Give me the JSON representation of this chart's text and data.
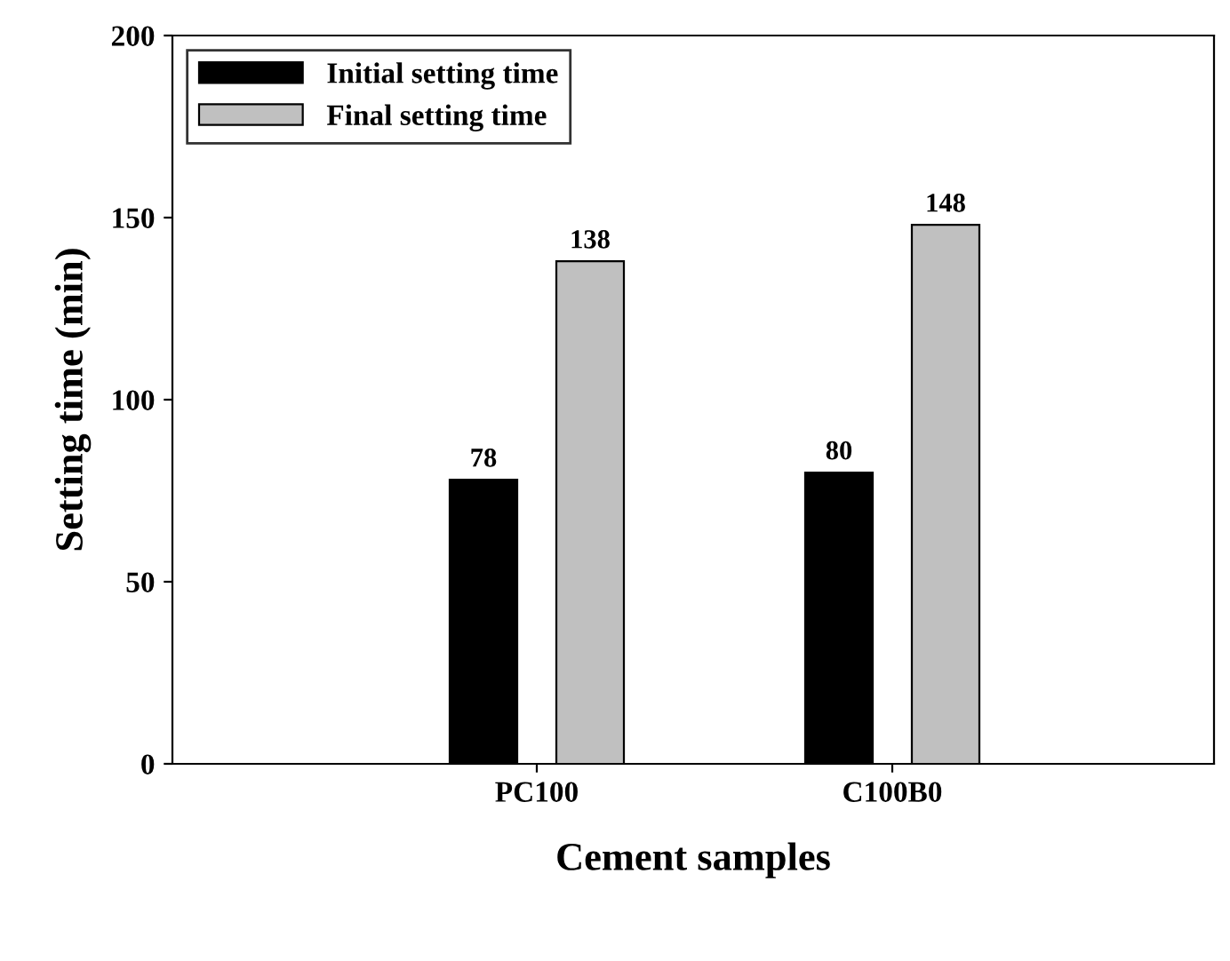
{
  "chart_data": {
    "type": "bar",
    "xlabel": "Cement samples",
    "ylabel": "Setting time (min)",
    "categories": [
      "PC100",
      "C100B0"
    ],
    "series": [
      {
        "name": "Initial setting time",
        "color": "#000000",
        "values": [
          78,
          80
        ]
      },
      {
        "name": "Final setting time",
        "color": "#c0c0c0",
        "values": [
          138,
          148
        ]
      }
    ],
    "ylim": [
      0,
      200
    ],
    "yticks": [
      0,
      50,
      100,
      150,
      200
    ],
    "data_labels": true,
    "legend": "top left",
    "grid": false
  }
}
